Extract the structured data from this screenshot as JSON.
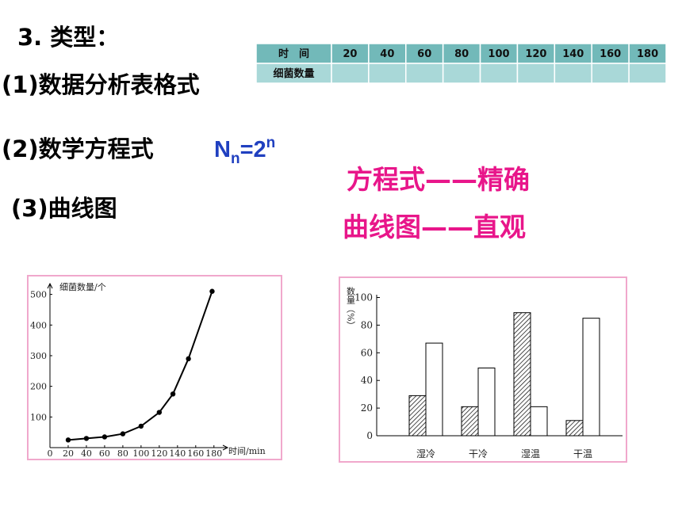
{
  "heading": "3. 类型：",
  "items": [
    "(1)数据分析表格式",
    "(2)数学方程式",
    "(3)曲线图"
  ],
  "equation": {
    "base": "N",
    "sub": "n",
    "rest": "=2",
    "sup": "n"
  },
  "notes": [
    "方程式——精确",
    "曲线图——直观"
  ],
  "table": {
    "columns": [
      "时　间",
      "20",
      "40",
      "60",
      "80",
      "100",
      "120",
      "140",
      "160",
      "180"
    ],
    "row_label": "细菌数量"
  },
  "line_chart": {
    "type": "line",
    "y_label": "细菌数量/个",
    "x_label": "时间/min",
    "x": [
      20,
      40,
      60,
      80,
      100,
      120,
      135,
      152,
      178
    ],
    "values": [
      25,
      30,
      35,
      45,
      70,
      115,
      175,
      290,
      510
    ],
    "xlim": [
      0,
      195
    ],
    "ylim": [
      0,
      530
    ],
    "xticks": [
      0,
      20,
      40,
      60,
      80,
      100,
      120,
      140,
      160,
      180
    ],
    "yticks": [
      100,
      200,
      300,
      400,
      500
    ],
    "color": "#000000"
  },
  "bar_chart": {
    "type": "bar",
    "y_label": "数量（%）",
    "categories": [
      "湿冷",
      "干冷",
      "湿温",
      "干温"
    ],
    "series": [
      {
        "style": "hatch",
        "color": "#000000",
        "values": [
          29,
          21,
          89,
          11
        ]
      },
      {
        "style": "plain",
        "color": "#ffffff",
        "values": [
          67,
          49,
          21,
          85
        ]
      }
    ],
    "ylim": [
      0,
      102
    ],
    "yticks": [
      0,
      20,
      40,
      60,
      80,
      100
    ]
  }
}
